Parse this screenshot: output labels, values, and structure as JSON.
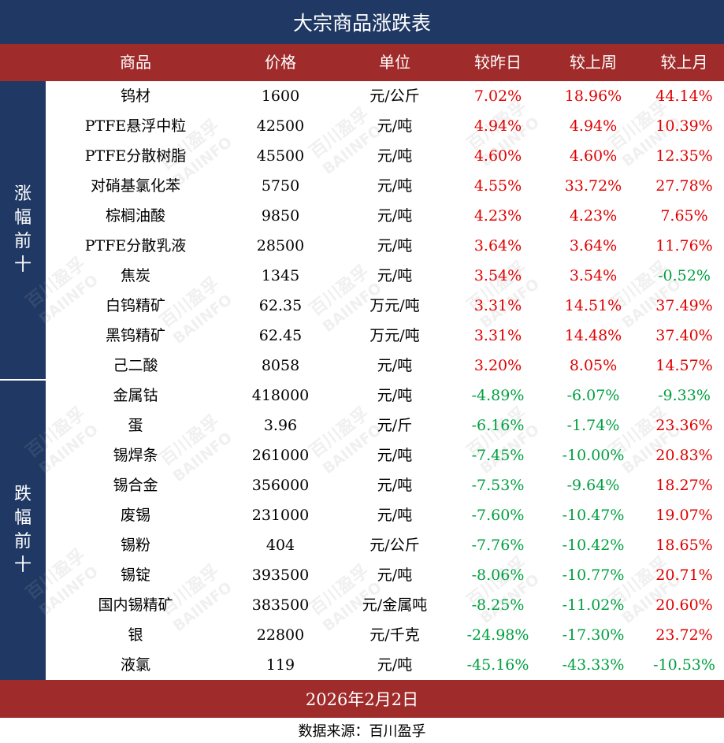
{
  "title": "大宗商品涨跌表",
  "columns": [
    "商品",
    "价格",
    "单位",
    "较昨日",
    "较上周",
    "较上月"
  ],
  "sections": {
    "up_label": "涨幅前十",
    "down_label": "跌幅前十"
  },
  "rows_up": [
    {
      "name": "钨材",
      "price": "1600",
      "unit": "元/公斤",
      "day": "7.02%",
      "week": "18.96%",
      "month": "44.14%"
    },
    {
      "name": "PTFE悬浮中粒",
      "price": "42500",
      "unit": "元/吨",
      "day": "4.94%",
      "week": "4.94%",
      "month": "10.39%"
    },
    {
      "name": "PTFE分散树脂",
      "price": "45500",
      "unit": "元/吨",
      "day": "4.60%",
      "week": "4.60%",
      "month": "12.35%"
    },
    {
      "name": "对硝基氯化苯",
      "price": "5750",
      "unit": "元/吨",
      "day": "4.55%",
      "week": "33.72%",
      "month": "27.78%"
    },
    {
      "name": "棕榈油酸",
      "price": "9850",
      "unit": "元/吨",
      "day": "4.23%",
      "week": "4.23%",
      "month": "7.65%"
    },
    {
      "name": "PTFE分散乳液",
      "price": "28500",
      "unit": "元/吨",
      "day": "3.64%",
      "week": "3.64%",
      "month": "11.76%"
    },
    {
      "name": "焦炭",
      "price": "1345",
      "unit": "元/吨",
      "day": "3.54%",
      "week": "3.54%",
      "month": "-0.52%"
    },
    {
      "name": "白钨精矿",
      "price": "62.35",
      "unit": "万元/吨",
      "day": "3.31%",
      "week": "14.51%",
      "month": "37.49%"
    },
    {
      "name": "黑钨精矿",
      "price": "62.45",
      "unit": "万元/吨",
      "day": "3.31%",
      "week": "14.48%",
      "month": "37.40%"
    },
    {
      "name": "己二酸",
      "price": "8058",
      "unit": "元/吨",
      "day": "3.20%",
      "week": "8.05%",
      "month": "14.57%"
    }
  ],
  "rows_down": [
    {
      "name": "金属钴",
      "price": "418000",
      "unit": "元/吨",
      "day": "-4.89%",
      "week": "-6.07%",
      "month": "-9.33%"
    },
    {
      "name": "蛋",
      "price": "3.96",
      "unit": "元/斤",
      "day": "-6.16%",
      "week": "-1.74%",
      "month": "23.36%"
    },
    {
      "name": "锡焊条",
      "price": "261000",
      "unit": "元/吨",
      "day": "-7.45%",
      "week": "-10.00%",
      "month": "20.83%"
    },
    {
      "name": "锡合金",
      "price": "356000",
      "unit": "元/吨",
      "day": "-7.53%",
      "week": "-9.64%",
      "month": "18.27%"
    },
    {
      "name": "废锡",
      "price": "231000",
      "unit": "元/吨",
      "day": "-7.60%",
      "week": "-10.47%",
      "month": "19.07%"
    },
    {
      "name": "锡粉",
      "price": "404",
      "unit": "元/公斤",
      "day": "-7.76%",
      "week": "-10.42%",
      "month": "18.65%"
    },
    {
      "name": "锡锭",
      "price": "393500",
      "unit": "元/吨",
      "day": "-8.06%",
      "week": "-10.77%",
      "month": "20.71%"
    },
    {
      "name": "国内锡精矿",
      "price": "383500",
      "unit": "元/金属吨",
      "day": "-8.25%",
      "week": "-11.02%",
      "month": "20.60%"
    },
    {
      "name": "银",
      "price": "22800",
      "unit": "元/千克",
      "day": "-24.98%",
      "week": "-17.30%",
      "month": "23.72%"
    },
    {
      "name": "液氯",
      "price": "119",
      "unit": "元/吨",
      "day": "-45.16%",
      "week": "-43.33%",
      "month": "-10.53%"
    }
  ],
  "date": "2026年2月2日",
  "source": "数据来源：百川盈孚",
  "watermark": {
    "cn": "百川盈孚",
    "en": "BAIINFO"
  },
  "colors": {
    "navy": "#1f3864",
    "red_bar": "#a02b2b",
    "up": "#e00000",
    "down": "#00a040"
  }
}
